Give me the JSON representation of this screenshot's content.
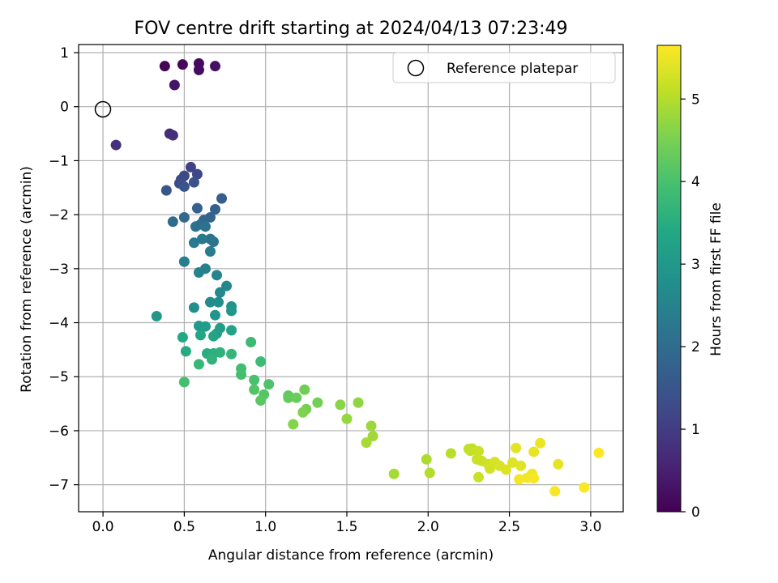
{
  "chart_data": {
    "type": "scatter",
    "title": "FOV centre drift starting at 2024/04/13 07:23:49",
    "xlabel": "Angular distance from reference (arcmin)",
    "ylabel": "Rotation from reference (arcmin)",
    "xlim": [
      -0.15,
      3.2
    ],
    "ylim": [
      -7.5,
      1.15
    ],
    "xticks": [
      "0.0",
      "0.5",
      "1.0",
      "1.5",
      "2.0",
      "2.5",
      "3.0"
    ],
    "xtick_values": [
      0,
      0.5,
      1.0,
      1.5,
      2.0,
      2.5,
      3.0
    ],
    "yticks": [
      "1",
      "0",
      "−1",
      "−2",
      "−3",
      "−4",
      "−5",
      "−6",
      "−7"
    ],
    "ytick_values": [
      1,
      0,
      -1,
      -2,
      -3,
      -4,
      -5,
      -6,
      -7
    ],
    "grid": true,
    "legend": {
      "label": "Reference platepar",
      "position": "top-right"
    },
    "reference_point": {
      "x": 0,
      "y": 0
    },
    "colorbar": {
      "label": "Hours from first FF file",
      "colormap": "viridis",
      "range": [
        0,
        5.65
      ],
      "ticks": [
        "0",
        "1",
        "2",
        "3",
        "4",
        "5"
      ],
      "tick_values": [
        0,
        1,
        2,
        3,
        4,
        5
      ]
    },
    "points": [
      [
        0.38,
        0.75,
        0.05
      ],
      [
        0.49,
        0.78,
        0.1
      ],
      [
        0.59,
        0.8,
        0.15
      ],
      [
        0.59,
        0.68,
        0.2
      ],
      [
        0.69,
        0.75,
        0.25
      ],
      [
        0.44,
        0.4,
        0.3
      ],
      [
        0.41,
        -0.5,
        0.7
      ],
      [
        0.43,
        -0.53,
        0.75
      ],
      [
        0.08,
        -0.71,
        0.8
      ],
      [
        0.54,
        -1.12,
        1.1
      ],
      [
        0.58,
        -1.25,
        1.2
      ],
      [
        0.5,
        -1.28,
        1.25
      ],
      [
        0.48,
        -1.35,
        1.3
      ],
      [
        0.47,
        -1.42,
        1.35
      ],
      [
        0.56,
        -1.4,
        1.4
      ],
      [
        0.5,
        -1.48,
        1.45
      ],
      [
        0.39,
        -1.55,
        1.5
      ],
      [
        0.73,
        -1.7,
        1.65
      ],
      [
        0.69,
        -1.9,
        1.7
      ],
      [
        0.58,
        -1.88,
        1.75
      ],
      [
        0.66,
        -2.05,
        1.8
      ],
      [
        0.62,
        -2.1,
        1.85
      ],
      [
        0.5,
        -2.05,
        1.9
      ],
      [
        0.43,
        -2.13,
        1.95
      ],
      [
        0.6,
        -2.18,
        2.0
      ],
      [
        0.57,
        -2.22,
        2.05
      ],
      [
        0.63,
        -2.22,
        2.1
      ],
      [
        0.66,
        -2.45,
        2.15
      ],
      [
        0.68,
        -2.5,
        2.2
      ],
      [
        0.61,
        -2.45,
        2.25
      ],
      [
        0.56,
        -2.52,
        2.3
      ],
      [
        0.66,
        -2.68,
        2.35
      ],
      [
        0.5,
        -2.87,
        2.4
      ],
      [
        0.63,
        -3.0,
        2.45
      ],
      [
        0.59,
        -3.07,
        2.5
      ],
      [
        0.7,
        -3.12,
        2.55
      ],
      [
        0.76,
        -3.32,
        2.6
      ],
      [
        0.72,
        -3.44,
        2.65
      ],
      [
        0.66,
        -3.62,
        2.7
      ],
      [
        0.71,
        -3.62,
        2.75
      ],
      [
        0.56,
        -3.72,
        2.8
      ],
      [
        0.79,
        -3.7,
        2.85
      ],
      [
        0.69,
        -3.86,
        2.9
      ],
      [
        0.79,
        -3.78,
        2.95
      ],
      [
        0.33,
        -3.88,
        3.0
      ],
      [
        0.59,
        -4.06,
        3.05
      ],
      [
        0.63,
        -4.07,
        3.1
      ],
      [
        0.72,
        -4.1,
        3.15
      ],
      [
        0.7,
        -4.2,
        3.2
      ],
      [
        0.79,
        -4.14,
        3.25
      ],
      [
        0.68,
        -4.25,
        3.3
      ],
      [
        0.6,
        -4.23,
        3.35
      ],
      [
        0.49,
        -4.27,
        3.4
      ],
      [
        0.51,
        -4.53,
        3.45
      ],
      [
        0.64,
        -4.57,
        3.5
      ],
      [
        0.68,
        -4.57,
        3.55
      ],
      [
        0.72,
        -4.55,
        3.6
      ],
      [
        0.67,
        -4.68,
        3.65
      ],
      [
        0.79,
        -4.58,
        3.7
      ],
      [
        0.59,
        -4.77,
        3.75
      ],
      [
        0.91,
        -4.36,
        3.8
      ],
      [
        0.97,
        -4.72,
        3.85
      ],
      [
        0.85,
        -4.85,
        3.9
      ],
      [
        0.85,
        -4.96,
        3.95
      ],
      [
        0.5,
        -5.1,
        3.95
      ],
      [
        0.93,
        -5.06,
        4.0
      ],
      [
        1.02,
        -5.14,
        4.05
      ],
      [
        0.93,
        -5.24,
        4.1
      ],
      [
        0.99,
        -5.33,
        4.15
      ],
      [
        0.97,
        -5.44,
        4.2
      ],
      [
        1.14,
        -5.35,
        4.25
      ],
      [
        1.14,
        -5.39,
        4.3
      ],
      [
        1.19,
        -5.39,
        4.35
      ],
      [
        1.24,
        -5.24,
        4.4
      ],
      [
        1.32,
        -5.48,
        4.45
      ],
      [
        1.25,
        -5.6,
        4.5
      ],
      [
        1.23,
        -5.66,
        4.55
      ],
      [
        1.17,
        -5.88,
        4.6
      ],
      [
        1.46,
        -5.52,
        4.65
      ],
      [
        1.57,
        -5.48,
        4.7
      ],
      [
        1.5,
        -5.78,
        4.75
      ],
      [
        1.65,
        -5.91,
        4.8
      ],
      [
        1.66,
        -6.1,
        4.85
      ],
      [
        1.62,
        -6.22,
        4.9
      ],
      [
        1.79,
        -6.8,
        4.9
      ],
      [
        1.99,
        -6.53,
        4.95
      ],
      [
        2.01,
        -6.78,
        5.0
      ],
      [
        2.14,
        -6.42,
        5.05
      ],
      [
        2.25,
        -6.34,
        5.1
      ],
      [
        2.27,
        -6.33,
        5.12
      ],
      [
        2.26,
        -6.37,
        5.15
      ],
      [
        2.31,
        -6.38,
        5.18
      ],
      [
        2.3,
        -6.53,
        5.2
      ],
      [
        2.33,
        -6.56,
        5.22
      ],
      [
        2.37,
        -6.62,
        5.25
      ],
      [
        2.38,
        -6.7,
        5.28
      ],
      [
        2.41,
        -6.58,
        5.3
      ],
      [
        2.44,
        -6.65,
        5.32
      ],
      [
        2.48,
        -6.72,
        5.35
      ],
      [
        2.52,
        -6.59,
        5.38
      ],
      [
        2.57,
        -6.65,
        5.4
      ],
      [
        2.54,
        -6.32,
        5.42
      ],
      [
        2.65,
        -6.39,
        5.45
      ],
      [
        2.69,
        -6.23,
        5.5
      ],
      [
        2.64,
        -6.8,
        5.52
      ],
      [
        2.61,
        -6.87,
        5.55
      ],
      [
        2.56,
        -6.9,
        5.58
      ],
      [
        2.65,
        -6.88,
        5.6
      ],
      [
        2.31,
        -6.86,
        5.2
      ],
      [
        2.8,
        -6.62,
        5.45
      ],
      [
        2.78,
        -7.12,
        5.6
      ],
      [
        2.96,
        -7.05,
        5.62
      ],
      [
        3.05,
        -6.41,
        5.65
      ]
    ]
  }
}
